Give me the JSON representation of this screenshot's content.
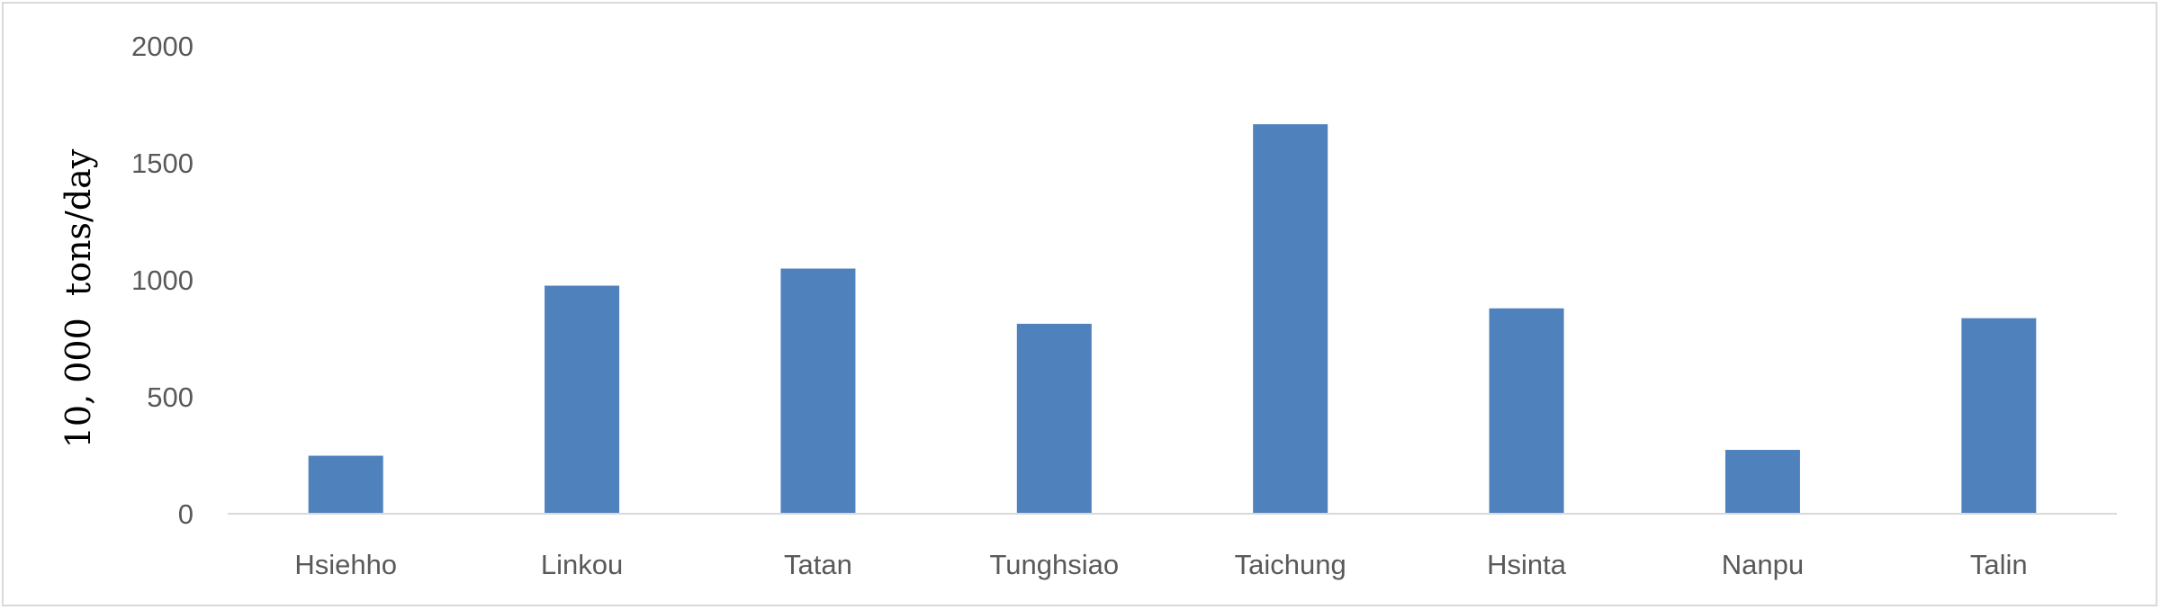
{
  "chart_data": {
    "type": "bar",
    "title": "",
    "xlabel": "",
    "ylabel": "10, 000  tons/day",
    "categories": [
      "Hsiehho",
      "Linkou",
      "Tatan",
      "Tunghsiao",
      "Taichung",
      "Hsinta",
      "Nanpu",
      "Talin"
    ],
    "series": [
      {
        "values": [
          248,
          975,
          1048,
          812,
          1665,
          878,
          273,
          836
        ]
      }
    ],
    "ylim": [
      0,
      2000
    ],
    "yticks": [
      "0",
      "500",
      "1000",
      "1500",
      "2000"
    ],
    "grid": false,
    "legend": "none",
    "bar_color": "#4f81bd",
    "axis_color": "#d9d9d9"
  }
}
